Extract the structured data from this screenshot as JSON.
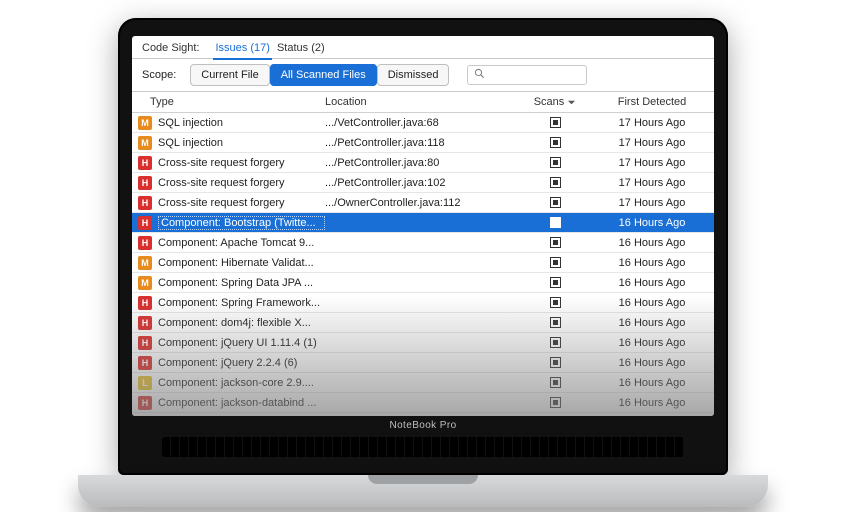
{
  "brand": "NoteBook Pro",
  "topbar": {
    "product": "Code Sight:",
    "tabs": [
      {
        "label": "Issues (17)",
        "active": true
      },
      {
        "label": "Status (2)",
        "active": false
      }
    ]
  },
  "scope": {
    "label": "Scope:",
    "options": [
      {
        "label": "Current File",
        "active": false
      },
      {
        "label": "All Scanned Files",
        "active": true
      },
      {
        "label": "Dismissed",
        "active": false
      }
    ],
    "search_placeholder": ""
  },
  "columns": {
    "type": "Type",
    "location": "Location",
    "scans": "Scans",
    "first_detected": "First Detected"
  },
  "severity_colors": {
    "H": "#d9302e",
    "M": "#e88b1f",
    "L": "#e6c02e"
  },
  "selection_color": "#1a6fd6",
  "rows": [
    {
      "sev": "M",
      "type": "SQL injection",
      "loc": ".../VetController.java:68",
      "first": "17 Hours Ago",
      "selected": false
    },
    {
      "sev": "M",
      "type": "SQL injection",
      "loc": ".../PetController.java:118",
      "first": "17 Hours Ago",
      "selected": false
    },
    {
      "sev": "H",
      "type": "Cross-site request forgery",
      "loc": ".../PetController.java:80",
      "first": "17 Hours Ago",
      "selected": false
    },
    {
      "sev": "H",
      "type": "Cross-site request forgery",
      "loc": ".../PetController.java:102",
      "first": "17 Hours Ago",
      "selected": false
    },
    {
      "sev": "H",
      "type": "Cross-site request forgery",
      "loc": ".../OwnerController.java:112",
      "first": "17 Hours Ago",
      "selected": false
    },
    {
      "sev": "H",
      "type": "Component: Bootstrap (Twitte...",
      "loc": "",
      "first": "16 Hours Ago",
      "selected": true
    },
    {
      "sev": "H",
      "type": "Component: Apache Tomcat 9...",
      "loc": "",
      "first": "16 Hours Ago",
      "selected": false
    },
    {
      "sev": "M",
      "type": "Component: Hibernate Validat...",
      "loc": "",
      "first": "16 Hours Ago",
      "selected": false
    },
    {
      "sev": "M",
      "type": "Component: Spring Data JPA ...",
      "loc": "",
      "first": "16 Hours Ago",
      "selected": false
    },
    {
      "sev": "H",
      "type": "Component: Spring Framework...",
      "loc": "",
      "first": "16 Hours Ago",
      "selected": false
    },
    {
      "sev": "H",
      "type": "Component: dom4j: flexible X...",
      "loc": "",
      "first": "16 Hours Ago",
      "selected": false
    },
    {
      "sev": "H",
      "type": "Component: jQuery UI 1.11.4 (1)",
      "loc": "",
      "first": "16 Hours Ago",
      "selected": false
    },
    {
      "sev": "H",
      "type": "Component: jQuery 2.2.4 (6)",
      "loc": "",
      "first": "16 Hours Ago",
      "selected": false
    },
    {
      "sev": "L",
      "type": "Component: jackson-core 2.9....",
      "loc": "",
      "first": "16 Hours Ago",
      "selected": false
    },
    {
      "sev": "H",
      "type": "Component: jackson-databind ...",
      "loc": "",
      "first": "16 Hours Ago",
      "selected": false
    }
  ]
}
